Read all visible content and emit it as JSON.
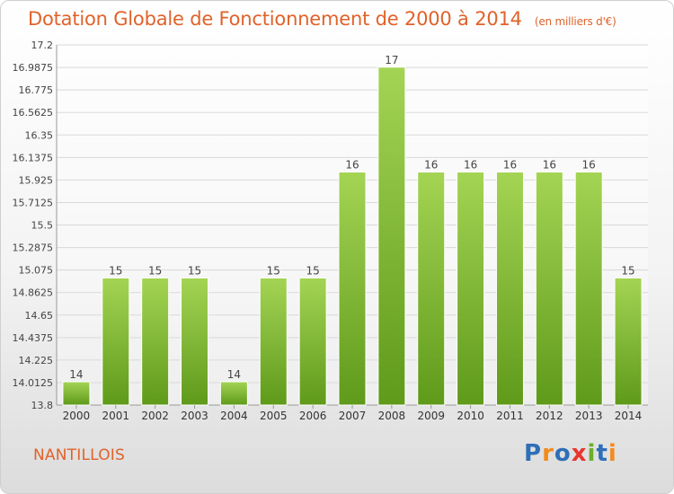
{
  "title": "Dotation Globale de Fonctionnement de 2000 à 2014",
  "unit_note": "(en milliers d'€)",
  "commune": "NANTILLOIS",
  "brand": {
    "letters": [
      "P",
      "r",
      "o",
      "x",
      "i",
      "t",
      "i"
    ],
    "colors": [
      "#2f6fb8",
      "#f28c1e",
      "#2f6fb8",
      "#e6372e",
      "#6cae2d",
      "#2f6fb8",
      "#f28c1e"
    ]
  },
  "colors": {
    "bar_light": "#a4d454",
    "bar_dark": "#5f9a1a",
    "title": "#e0622a",
    "grid": "#d9d9d9"
  },
  "chart_data": {
    "type": "bar",
    "title": "Dotation Globale de Fonctionnement de 2000 à 2014",
    "categories": [
      "2000",
      "2001",
      "2002",
      "2003",
      "2004",
      "2005",
      "2006",
      "2007",
      "2008",
      "2009",
      "2010",
      "2011",
      "2012",
      "2013",
      "2014"
    ],
    "values": [
      14,
      15,
      15,
      15,
      14,
      15,
      15,
      16,
      17,
      16,
      16,
      16,
      16,
      16,
      15
    ],
    "bar_tops": [
      14.02,
      15.0,
      15.0,
      15.0,
      14.02,
      15.0,
      15.0,
      16.0,
      16.99,
      16.0,
      16.0,
      16.0,
      16.0,
      16.0,
      15.0
    ],
    "data_labels": [
      "14",
      "15",
      "15",
      "15",
      "14",
      "15",
      "15",
      "16",
      "17",
      "16",
      "16",
      "16",
      "16",
      "16",
      "15"
    ],
    "yticks": [
      "13.8",
      "14.0125",
      "14.225",
      "14.4375",
      "14.65",
      "14.8625",
      "15.075",
      "15.2875",
      "15.5",
      "15.7125",
      "15.925",
      "16.1375",
      "16.35",
      "16.5625",
      "16.775",
      "16.9875",
      "17.2"
    ],
    "ylim": [
      13.8,
      17.2
    ],
    "grid": true,
    "legend": "none",
    "xlabel": "",
    "ylabel": ""
  }
}
